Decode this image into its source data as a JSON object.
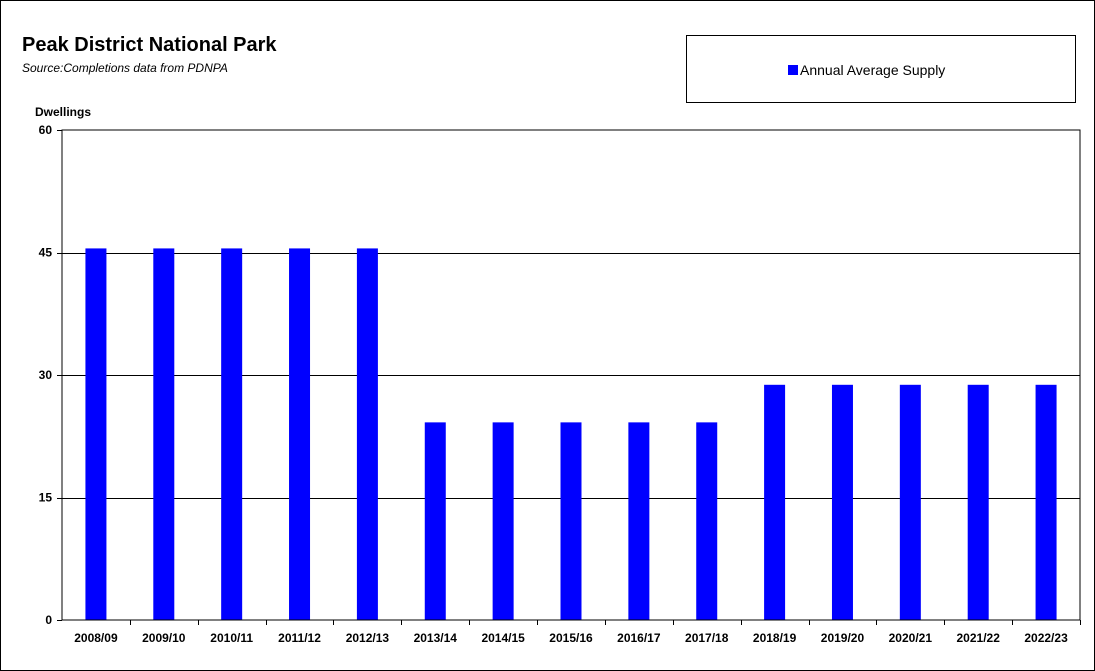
{
  "chart_data": {
    "type": "bar",
    "title": "Peak District National Park",
    "subtitle": "Source:Completions data from PDNPA",
    "ylabel": "Dwellings",
    "xlabel": "",
    "ylim": [
      0,
      60
    ],
    "yticks": [
      "0",
      "15",
      "30",
      "45",
      "60"
    ],
    "ytick_values": [
      0,
      15,
      30,
      45,
      60
    ],
    "grid": true,
    "legend_position": "top-right",
    "categories": [
      "2008/09",
      "2009/10",
      "2010/11",
      "2011/12",
      "2012/13",
      "2013/14",
      "2014/15",
      "2015/16",
      "2016/17",
      "2017/18",
      "2018/19",
      "2019/20",
      "2020/21",
      "2021/22",
      "2022/23"
    ],
    "series": [
      {
        "name": "Annual Average Supply",
        "color": "#0000ff",
        "values": [
          45.5,
          45.5,
          45.5,
          45.5,
          45.5,
          24.2,
          24.2,
          24.2,
          24.2,
          24.2,
          28.8,
          28.8,
          28.8,
          28.8,
          28.8
        ]
      }
    ]
  }
}
